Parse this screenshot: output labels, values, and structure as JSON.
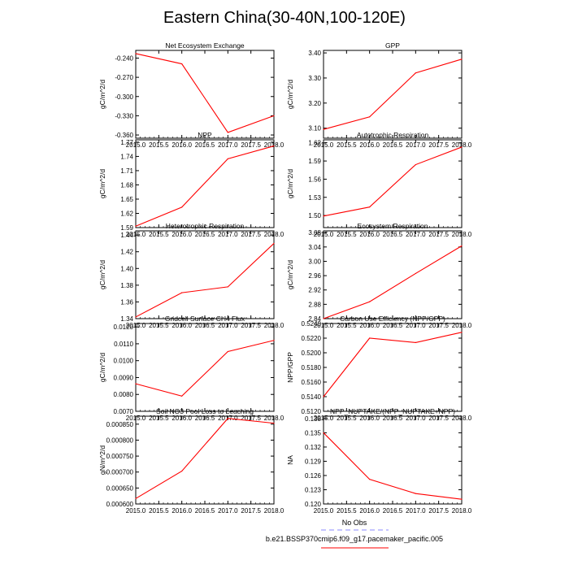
{
  "figure": {
    "title": "Eastern China(30-40N,100-120E)",
    "colors": {
      "series": "#ff0000",
      "obs": "#8a8aff",
      "axis": "#000000"
    }
  },
  "legend": {
    "entries": [
      {
        "label": "No Obs",
        "style": "dashed",
        "color": "#8a8aff"
      },
      {
        "label": "b.e21.BSSP370cmip6.f09_g17.pacemaker_pacific.005",
        "style": "solid",
        "color": "#ff0000"
      }
    ]
  },
  "chart_data": [
    {
      "type": "line",
      "title": "Net Ecosystem Exchange",
      "ylabel": "gC/m^2/d",
      "x": [
        2015.0,
        2016.0,
        2017.0,
        2018.0
      ],
      "values": [
        -0.233,
        -0.249,
        -0.356,
        -0.33
      ],
      "xlim": [
        2015.0,
        2018.0
      ],
      "ylim": [
        -0.365,
        -0.228
      ],
      "xticks": [
        2015.0,
        2015.5,
        2016.0,
        2016.5,
        2017.0,
        2017.5,
        2018.0
      ],
      "xtick_labels": [
        "2015.0",
        "2015.5",
        "2016.0",
        "2016.5",
        "2017.0",
        "2017.5",
        "2018.0"
      ],
      "yticks": [
        -0.24,
        -0.27,
        -0.3,
        -0.33,
        -0.36
      ],
      "ytick_labels": [
        "-0.240",
        "-0.270",
        "-0.300",
        "-0.330",
        "-0.360"
      ]
    },
    {
      "type": "line",
      "title": "GPP",
      "ylabel": "gC/m^2/d",
      "x": [
        2015.0,
        2016.0,
        2017.0,
        2018.0
      ],
      "values": [
        3.095,
        3.145,
        3.32,
        3.375
      ],
      "xlim": [
        2015.0,
        2018.0
      ],
      "ylim": [
        3.06,
        3.41
      ],
      "xticks": [
        2015.0,
        2015.5,
        2016.0,
        2016.5,
        2017.0,
        2017.5,
        2018.0
      ],
      "xtick_labels": [
        "2015.0",
        "2015.5",
        "2016.0",
        "2016.5",
        "2017.0",
        "2017.5",
        "2018.0"
      ],
      "yticks": [
        3.1,
        3.2,
        3.3,
        3.4
      ],
      "ytick_labels": [
        "3.10",
        "3.20",
        "3.30",
        "3.40"
      ]
    },
    {
      "type": "line",
      "title": "NPP",
      "ylabel": "gC/m^2/d",
      "x": [
        2015.0,
        2016.0,
        2017.0,
        2018.0
      ],
      "values": [
        1.593,
        1.633,
        1.735,
        1.762
      ],
      "xlim": [
        2015.0,
        2018.0
      ],
      "ylim": [
        1.59,
        1.775
      ],
      "xticks": [
        2015.0,
        2015.5,
        2016.0,
        2016.5,
        2017.0,
        2017.5,
        2018.0
      ],
      "xtick_labels": [
        "2015.0",
        "2015.5",
        "2016.0",
        "2016.5",
        "2017.0",
        "2017.5",
        "2018.0"
      ],
      "yticks": [
        1.59,
        1.62,
        1.65,
        1.68,
        1.71,
        1.74,
        1.77
      ],
      "ytick_labels": [
        "1.59",
        "1.62",
        "1.65",
        "1.68",
        "1.71",
        "1.74",
        "1.77"
      ]
    },
    {
      "type": "line",
      "title": "Autotrophic Respiration",
      "ylabel": "gC/m^2/d",
      "x": [
        2015.0,
        2016.0,
        2017.0,
        2018.0
      ],
      "values": [
        1.499,
        1.514,
        1.584,
        1.613
      ],
      "xlim": [
        2015.0,
        2018.0
      ],
      "ylim": [
        1.48,
        1.625
      ],
      "xticks": [
        2015.0,
        2015.5,
        2016.0,
        2016.5,
        2017.0,
        2017.5,
        2018.0
      ],
      "xtick_labels": [
        "2015.0",
        "2015.5",
        "2016.0",
        "2016.5",
        "2017.0",
        "2017.5",
        "2018.0"
      ],
      "yticks": [
        1.5,
        1.53,
        1.56,
        1.59,
        1.62
      ],
      "ytick_labels": [
        "1.50",
        "1.53",
        "1.56",
        "1.59",
        "1.62"
      ]
    },
    {
      "type": "line",
      "title": "Heterotrophic Respiration",
      "ylabel": "gC/m^2/d",
      "x": [
        2015.0,
        2016.0,
        2017.0,
        2018.0
      ],
      "values": [
        1.342,
        1.371,
        1.378,
        1.43
      ],
      "xlim": [
        2015.0,
        2018.0
      ],
      "ylim": [
        1.34,
        1.445
      ],
      "xticks": [
        2015.0,
        2015.5,
        2016.0,
        2016.5,
        2017.0,
        2017.5,
        2018.0
      ],
      "xtick_labels": [
        "2015.0",
        "2015.5",
        "2016.0",
        "2016.5",
        "2017.0",
        "2017.5",
        "2018.0"
      ],
      "yticks": [
        1.34,
        1.36,
        1.38,
        1.4,
        1.42,
        1.44
      ],
      "ytick_labels": [
        "1.34",
        "1.36",
        "1.38",
        "1.40",
        "1.42",
        "1.44"
      ]
    },
    {
      "type": "line",
      "title": "Ecosystem Respiration",
      "ylabel": "gC/m^2/d",
      "x": [
        2015.0,
        2016.0,
        2017.0,
        2018.0
      ],
      "values": [
        2.84,
        2.887,
        2.966,
        3.043
      ],
      "xlim": [
        2015.0,
        2018.0
      ],
      "ylim": [
        2.84,
        3.085
      ],
      "xticks": [
        2015.0,
        2015.5,
        2016.0,
        2016.5,
        2017.0,
        2017.5,
        2018.0
      ],
      "xtick_labels": [
        "2015.0",
        "2015.5",
        "2016.0",
        "2016.5",
        "2017.0",
        "2017.5",
        "2018.0"
      ],
      "yticks": [
        2.84,
        2.88,
        2.92,
        2.96,
        3.0,
        3.04,
        3.08
      ],
      "ytick_labels": [
        "2.84",
        "2.88",
        "2.92",
        "2.96",
        "3.00",
        "3.04",
        "3.08"
      ]
    },
    {
      "type": "line",
      "title": "Gridcell Surface CH4 Flux",
      "ylabel": "gC/m^2/d",
      "x": [
        2015.0,
        2016.0,
        2017.0,
        2018.0
      ],
      "values": [
        0.00863,
        0.0079,
        0.01054,
        0.0112
      ],
      "xlim": [
        2015.0,
        2018.0
      ],
      "ylim": [
        0.007,
        0.0122
      ],
      "xticks": [
        2015.0,
        2015.5,
        2016.0,
        2016.5,
        2017.0,
        2017.5,
        2018.0
      ],
      "xtick_labels": [
        "2015.0",
        "2015.5",
        "2016.0",
        "2016.5",
        "2017.0",
        "2017.5",
        "2018.0"
      ],
      "yticks": [
        0.007,
        0.008,
        0.009,
        0.01,
        0.011,
        0.012
      ],
      "ytick_labels": [
        "0.0070",
        "0.0080",
        "0.0090",
        "0.0100",
        "0.0110",
        "0.0120"
      ]
    },
    {
      "type": "line",
      "title": "Carbon Use Efficiency (NPP/GPP)",
      "ylabel": "NPP/GPP",
      "x": [
        2015.0,
        2016.0,
        2017.0,
        2018.0
      ],
      "values": [
        0.514,
        0.522,
        0.5214,
        0.5228
      ],
      "xlim": [
        2015.0,
        2018.0
      ],
      "ylim": [
        0.512,
        0.524
      ],
      "xticks": [
        2015.0,
        2015.5,
        2016.0,
        2016.5,
        2017.0,
        2017.5,
        2018.0
      ],
      "xtick_labels": [
        "2015.0",
        "2015.5",
        "2016.0",
        "2016.5",
        "2017.0",
        "2017.5",
        "2018.0"
      ],
      "yticks": [
        0.512,
        0.514,
        0.516,
        0.518,
        0.52,
        0.522,
        0.524
      ],
      "ytick_labels": [
        "0.5120",
        "0.5140",
        "0.5160",
        "0.5180",
        "0.5200",
        "0.5220",
        "0.5240"
      ]
    },
    {
      "type": "line",
      "title": "Soil NO3 Pool Loss to Leaching",
      "ylabel": "gN/m^2/d",
      "x": [
        2015.0,
        2016.0,
        2017.0,
        2018.0
      ],
      "values": [
        0.000617,
        0.000703,
        0.000868,
        0.000853
      ],
      "xlim": [
        2015.0,
        2018.0
      ],
      "ylim": [
        0.0006,
        0.000875
      ],
      "xticks": [
        2015.0,
        2015.5,
        2016.0,
        2016.5,
        2017.0,
        2017.5,
        2018.0
      ],
      "xtick_labels": [
        "2015.0",
        "2015.5",
        "2016.0",
        "2016.5",
        "2017.0",
        "2017.5",
        "2018.0"
      ],
      "yticks": [
        0.0006,
        0.00065,
        0.0007,
        0.00075,
        0.0008,
        0.00085
      ],
      "ytick_labels": [
        "0.000600",
        "0.000650",
        "0.000700",
        "0.000750",
        "0.000800",
        "0.000850"
      ]
    },
    {
      "type": "line",
      "title": "NPP_NUPTAKE/(NPP_NUPTAKE+NPP)",
      "ylabel": "NA",
      "x": [
        2015.0,
        2016.0,
        2017.0,
        2018.0
      ],
      "values": [
        0.135,
        0.1252,
        0.1222,
        0.121
      ],
      "xlim": [
        2015.0,
        2018.0
      ],
      "ylim": [
        0.12,
        0.1385
      ],
      "xticks": [
        2015.0,
        2015.5,
        2016.0,
        2016.5,
        2017.0,
        2017.5,
        2018.0
      ],
      "xtick_labels": [
        "2015.0",
        "2015.5",
        "2016.0",
        "2016.5",
        "2017.0",
        "2017.5",
        "2018.0"
      ],
      "yticks": [
        0.12,
        0.123,
        0.126,
        0.129,
        0.132,
        0.135,
        0.138
      ],
      "ytick_labels": [
        "0.120",
        "0.123",
        "0.126",
        "0.129",
        "0.132",
        "0.135",
        "0.138"
      ]
    }
  ]
}
